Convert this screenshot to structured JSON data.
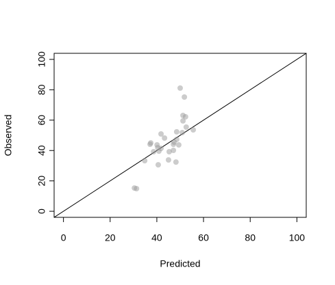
{
  "chart_data": {
    "type": "scatter",
    "x_label": "Predicted",
    "y_label": "Observed",
    "xlim": [
      -4,
      104
    ],
    "ylim": [
      -4,
      104
    ],
    "xticks": [
      0,
      20,
      40,
      60,
      80,
      100
    ],
    "yticks": [
      0,
      20,
      40,
      60,
      80,
      100
    ],
    "reference_line": {
      "intercept": 0,
      "slope": 1
    },
    "color": "#999999",
    "point_opacity": 0.5,
    "x": [
      50.0,
      51.8,
      51.2,
      52.3,
      51.2,
      52.6,
      55.6,
      48.5,
      50.9,
      41.8,
      43.3,
      48.5,
      47.4,
      37.4,
      37.1,
      40.1,
      47.1,
      49.4,
      40.4,
      41.8,
      40.9,
      38.6,
      45.3,
      47.1,
      34.8,
      45.0,
      48.2,
      40.6,
      30.4,
      31.3
    ],
    "values": [
      81.1,
      75.2,
      63.1,
      62.2,
      59.5,
      55.4,
      53.6,
      52.3,
      51.8,
      50.9,
      48.2,
      47.3,
      45.5,
      45.0,
      44.1,
      43.7,
      44.1,
      43.7,
      41.9,
      41.4,
      39.6,
      39.2,
      39.2,
      40.1,
      33.3,
      33.8,
      32.4,
      30.6,
      15.3,
      14.9
    ]
  }
}
